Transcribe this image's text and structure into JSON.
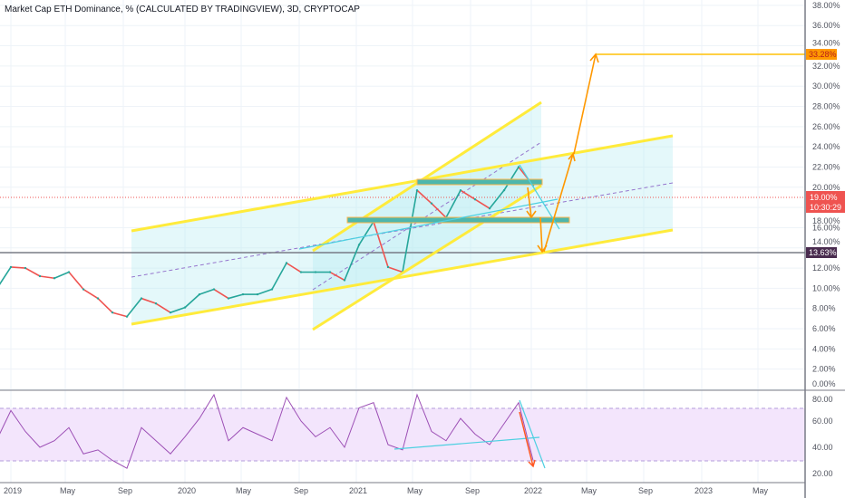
{
  "title": "Market Cap ETH Dominance, % (CALCULATED BY TRADINGVIEW), 3D, CRYPTOCAP",
  "colors": {
    "up": "#26a69a",
    "down": "#ef5350",
    "channel": "#ffeb3b",
    "fill": "#b2ebf2",
    "arrow": "#ff9800",
    "rsi": "#9c4fb5",
    "rsi_band": "#f3e5fc"
  },
  "labels": {
    "target": "33.28%",
    "current_price": "19.00%",
    "countdown": "10:30:29",
    "support": "13.63%"
  },
  "chart_data": [
    {
      "type": "line",
      "ylabel": "",
      "ylim": [
        0,
        38
      ],
      "y_ticks": [
        "0.00%",
        "2.00%",
        "4.00%",
        "6.00%",
        "8.00%",
        "10.00%",
        "12.00%",
        "14.00%",
        "16.00%",
        "18.00%",
        "20.00%",
        "22.00%",
        "24.00%",
        "26.00%",
        "28.00%",
        "30.00%",
        "32.00%",
        "34.00%",
        "36.00%",
        "38.00%"
      ],
      "x_ticks": [
        "2019",
        "May",
        "Sep",
        "2020",
        "May",
        "Sep",
        "2021",
        "May",
        "Sep",
        "2022",
        "May",
        "Sep",
        "2023",
        "May"
      ],
      "grid": true,
      "series": [
        {
          "x": [
            "2018-12",
            "2019-01",
            "2019-02",
            "2019-03",
            "2019-04",
            "2019-05",
            "2019-06",
            "2019-07",
            "2019-08",
            "2019-09",
            "2019-10",
            "2019-11",
            "2019-12",
            "2020-01",
            "2020-02",
            "2020-03",
            "2020-04",
            "2020-05",
            "2020-06",
            "2020-07",
            "2020-08",
            "2020-09",
            "2020-10",
            "2020-11",
            "2020-12",
            "2021-01",
            "2021-02",
            "2021-03",
            "2021-04",
            "2021-05",
            "2021-06",
            "2021-07",
            "2021-08",
            "2021-09",
            "2021-10",
            "2021-11",
            "2021-12",
            "2022-01"
          ],
          "y": [
            9.9,
            12.1,
            12.0,
            11.2,
            11.0,
            11.6,
            9.9,
            9.0,
            7.6,
            7.2,
            9.0,
            8.5,
            7.6,
            8.1,
            9.4,
            9.9,
            9.0,
            9.4,
            9.4,
            9.9,
            12.5,
            11.6,
            11.6,
            11.6,
            10.8,
            14.3,
            16.6,
            12.1,
            11.6,
            19.7,
            18.4,
            17.0,
            19.7,
            18.8,
            17.9,
            19.7,
            22.0,
            20.2
          ]
        }
      ]
    },
    {
      "type": "line",
      "ylim": [
        20,
        80
      ],
      "y_ticks": [
        "20.00",
        "40.00",
        "60.00",
        "80.00"
      ],
      "band": [
        30,
        70
      ],
      "series": [
        {
          "x": [
            "2018-12",
            "2019-01",
            "2019-02",
            "2019-03",
            "2019-04",
            "2019-05",
            "2019-06",
            "2019-07",
            "2019-08",
            "2019-09",
            "2019-10",
            "2019-11",
            "2019-12",
            "2020-01",
            "2020-02",
            "2020-03",
            "2020-04",
            "2020-05",
            "2020-06",
            "2020-07",
            "2020-08",
            "2020-09",
            "2020-10",
            "2020-11",
            "2020-12",
            "2021-01",
            "2021-02",
            "2021-03",
            "2021-04",
            "2021-05",
            "2021-06",
            "2021-07",
            "2021-08",
            "2021-09",
            "2021-10",
            "2021-11",
            "2021-12",
            "2022-01"
          ],
          "y": [
            45,
            68,
            52,
            40,
            45,
            55,
            35,
            38,
            30,
            24,
            55,
            45,
            35,
            48,
            62,
            80,
            45,
            55,
            50,
            45,
            78,
            60,
            48,
            55,
            40,
            70,
            74,
            42,
            38,
            80,
            52,
            45,
            62,
            50,
            42,
            58,
            74,
            30
          ]
        }
      ]
    }
  ]
}
